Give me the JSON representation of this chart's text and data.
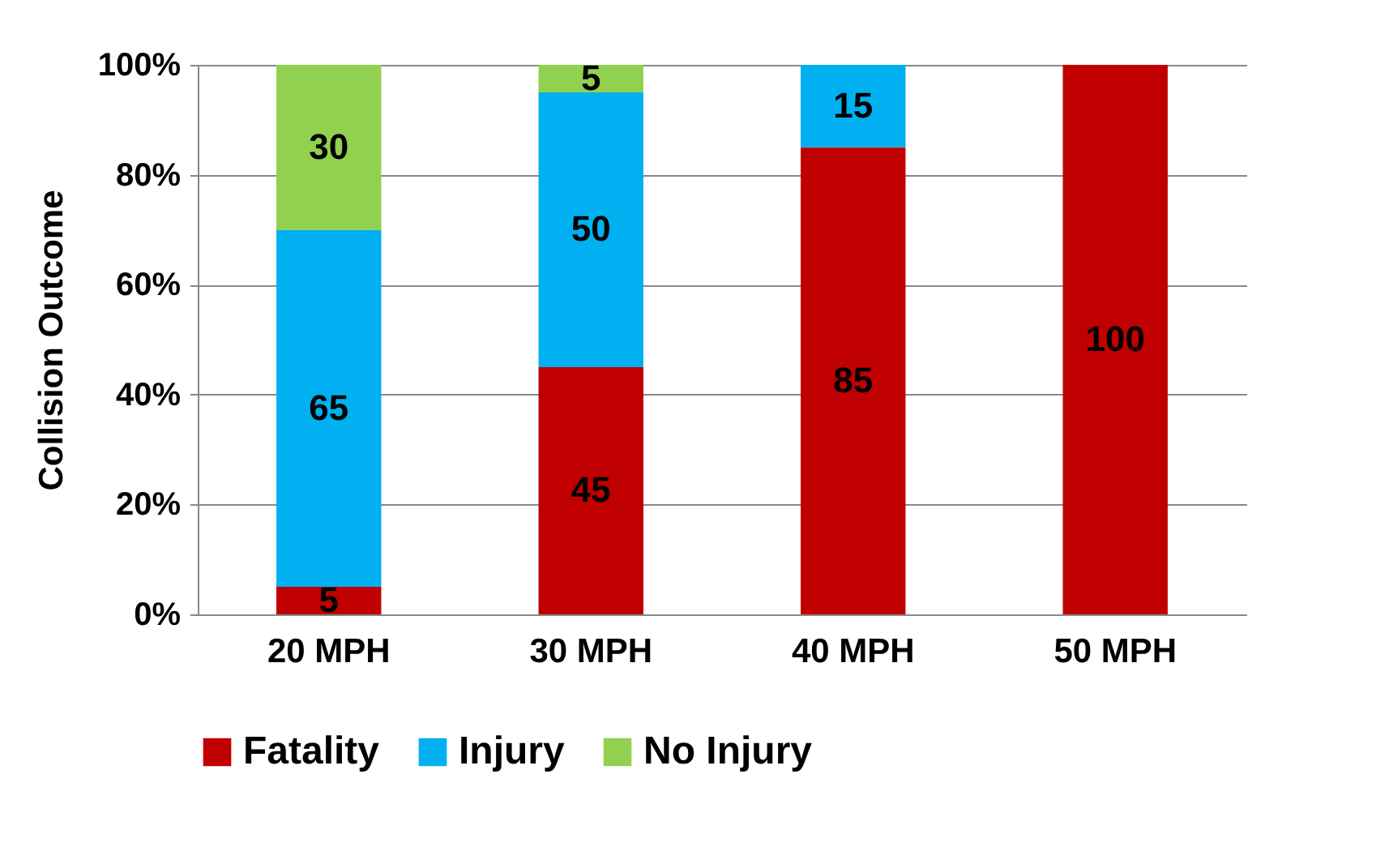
{
  "chart_data": {
    "type": "bar",
    "stacked": true,
    "ylabel": "Collision Outcome",
    "categories": [
      "20 MPH",
      "30 MPH",
      "40 MPH",
      "50 MPH"
    ],
    "series": [
      {
        "name": "Fatality",
        "color": "#c00000",
        "values": [
          5,
          45,
          85,
          100
        ]
      },
      {
        "name": "Injury",
        "color": "#00b0f0",
        "values": [
          65,
          50,
          15,
          null
        ]
      },
      {
        "name": "No Injury",
        "color": "#92d050",
        "values": [
          30,
          5,
          null,
          null
        ]
      }
    ],
    "ylim": [
      0,
      100
    ],
    "yticks": [
      {
        "value": 0,
        "label": "0%"
      },
      {
        "value": 20,
        "label": "20%"
      },
      {
        "value": 40,
        "label": "40%"
      },
      {
        "value": 60,
        "label": "60%"
      },
      {
        "value": 80,
        "label": "80%"
      },
      {
        "value": 100,
        "label": "100%"
      }
    ],
    "grid": "y",
    "legend": "bottom",
    "data_labels": true
  }
}
